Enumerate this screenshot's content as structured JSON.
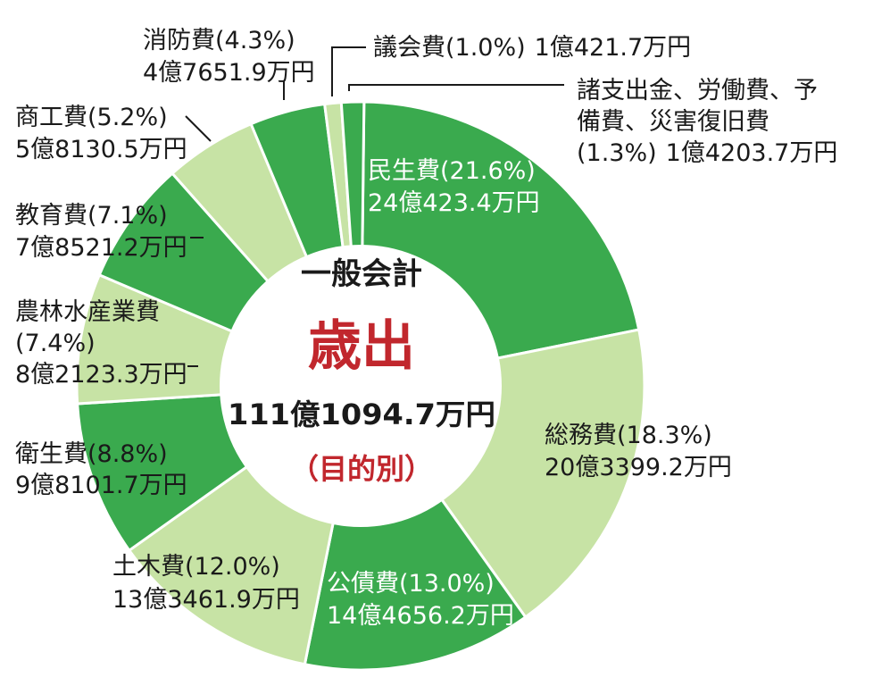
{
  "chart_data": {
    "type": "pie",
    "donut": true,
    "center": {
      "line1": "一般会計",
      "line2": "歳出",
      "line3": "111億1094.7万円",
      "line4": "（目的別）"
    },
    "colors": {
      "dark": "#3aaa4e",
      "light": "#c7e3a5",
      "accent_red": "#c1272d",
      "text": "#1a1a1a",
      "text_on_dark": "#ffffff"
    },
    "slices": [
      {
        "name": "民生費",
        "percent_label": "(21.6%)",
        "value_label": "24億423.4万円",
        "value": 240423.4,
        "color": "dark"
      },
      {
        "name": "総務費",
        "percent_label": "(18.3%)",
        "value_label": "20億3399.2万円",
        "value": 203399.2,
        "color": "light"
      },
      {
        "name": "公債費",
        "percent_label": "(13.0%)",
        "value_label": "14億4656.2万円",
        "value": 144656.2,
        "color": "dark"
      },
      {
        "name": "土木費",
        "percent_label": "(12.0%)",
        "value_label": "13億3461.9万円",
        "value": 133461.9,
        "color": "light"
      },
      {
        "name": "衛生費",
        "percent_label": "(8.8%)",
        "value_label": "9億8101.7万円",
        "value": 98101.7,
        "color": "dark"
      },
      {
        "name": "農林水産業費",
        "percent_label": "(7.4%)",
        "value_label": "8億2123.3万円",
        "value": 82123.3,
        "color": "light"
      },
      {
        "name": "教育費",
        "percent_label": "(7.1%)",
        "value_label": "7億8521.2万円",
        "value": 78521.2,
        "color": "dark"
      },
      {
        "name": "商工費",
        "percent_label": "(5.2%)",
        "value_label": "5億8130.5万円",
        "value": 58130.5,
        "color": "light"
      },
      {
        "name": "消防費",
        "percent_label": "(4.3%)",
        "value_label": "4億7651.9万円",
        "value": 47651.9,
        "color": "dark"
      },
      {
        "name": "議会費",
        "percent_label": "(1.0%)",
        "value_label": "1億421.7万円",
        "value": 10421.7,
        "color": "light"
      },
      {
        "name": "諸支出金、労働費、予備費、災害復旧費",
        "percent_label": "(1.3%)",
        "value_label": "1億4203.7万円",
        "value": 14203.7,
        "color": "dark"
      }
    ]
  }
}
